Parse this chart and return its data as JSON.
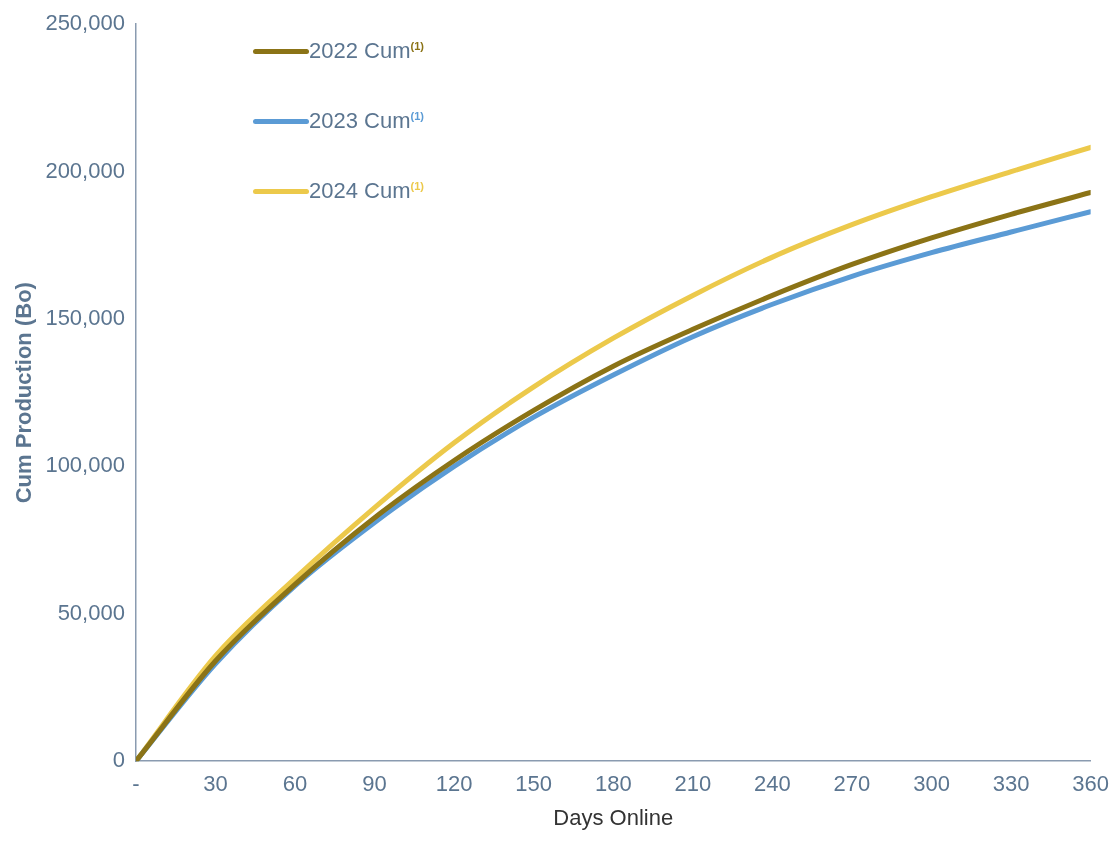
{
  "chart_data": {
    "type": "line",
    "xlabel": "Days Online",
    "ylabel": "Cum Production (Bo)",
    "x": [
      0,
      30,
      60,
      90,
      120,
      150,
      180,
      210,
      240,
      270,
      300,
      330,
      360
    ],
    "series": [
      {
        "name": "2022 Cum$^{(1)}$",
        "color": "#8b7316",
        "values": [
          0,
          34000,
          60000,
          82600,
          102000,
          119000,
          134000,
          146500,
          158000,
          168500,
          177500,
          185500,
          192900
        ]
      },
      {
        "name": "2023 Cum$^{(1)}$",
        "color": "#5b9bd5",
        "values": [
          0,
          33000,
          59500,
          81000,
          100000,
          116700,
          131000,
          144000,
          155000,
          164500,
          172500,
          179500,
          186400
        ]
      },
      {
        "name": "2024 Cum$^{(1)}$",
        "color": "#ecc94b",
        "values": [
          0,
          35700,
          62000,
          86000,
          108000,
          127000,
          143500,
          158000,
          171000,
          182000,
          191500,
          200000,
          208200
        ]
      }
    ],
    "xlim": [
      0,
      360
    ],
    "xticks": [
      {
        "value": 0,
        "label": "-"
      },
      30,
      60,
      90,
      120,
      150,
      180,
      210,
      240,
      270,
      300,
      330,
      360
    ],
    "ylim": [
      0,
      250000
    ],
    "yticks": [
      {
        "value": 0,
        "label": "0"
      },
      {
        "value": 50000,
        "label": "50,000"
      },
      {
        "value": 100000,
        "label": "100,000"
      },
      {
        "value": 150000,
        "label": "150,000"
      },
      {
        "value": 200000,
        "label": "200,000"
      },
      {
        "value": 250000,
        "label": "250,000"
      }
    ],
    "grid": false,
    "legend": "top left",
    "marker": "none",
    "line_style": "solid"
  }
}
